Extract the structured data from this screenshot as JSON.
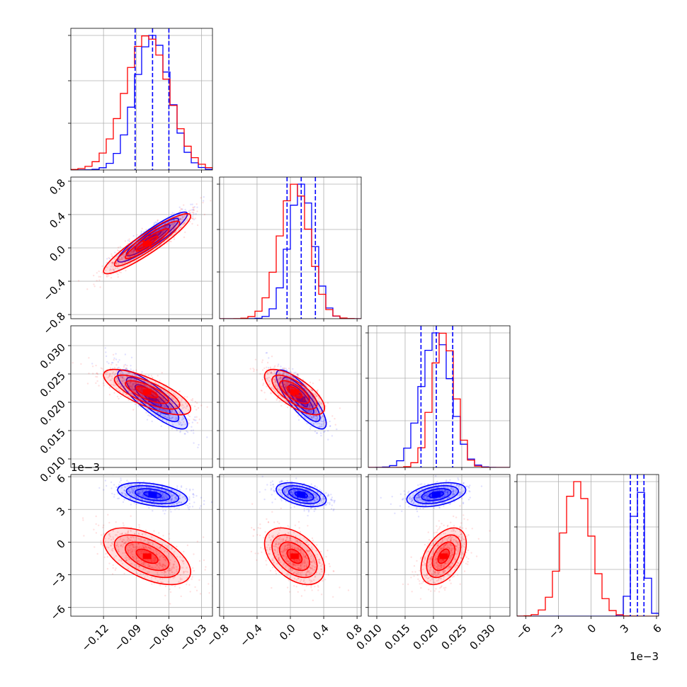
{
  "chart_data": {
    "type": "corner",
    "parameters": [
      {
        "range": [
          -0.15,
          -0.02
        ],
        "ticks": [
          -0.12,
          -0.09,
          -0.06,
          -0.03
        ],
        "tick_labels": [
          "−0.12",
          "−0.09",
          "−0.06",
          "−0.03"
        ]
      },
      {
        "range": [
          -0.85,
          0.85
        ],
        "ticks": [
          -0.8,
          -0.4,
          0.0,
          0.4,
          0.8
        ],
        "tick_labels": [
          "−0.8",
          "−0.4",
          "0.0",
          "0.4",
          "0.8"
        ]
      },
      {
        "range": [
          0.0085,
          0.0335
        ],
        "ticks": [
          0.01,
          0.015,
          0.02,
          0.025,
          0.03
        ],
        "tick_labels": [
          "0.010",
          "0.015",
          "0.020",
          "0.025",
          "0.030"
        ]
      },
      {
        "range": [
          -6.8,
          6.2
        ],
        "ticks": [
          -6,
          -3,
          0,
          3,
          6
        ],
        "tick_labels": [
          "−6",
          "−3",
          "0",
          "3",
          "6"
        ],
        "offset_label": "1e−3"
      }
    ],
    "grid": true,
    "series": [
      {
        "color": "#ff0000",
        "means": [
          -0.08,
          0.05,
          0.0218,
          -1.3
        ],
        "sds": [
          0.02,
          0.18,
          0.002,
          1.3
        ],
        "correlations": {
          "0-1": 0.92,
          "0-2": -0.75,
          "1-2": -0.7,
          "0-3": -0.55,
          "1-3": -0.45,
          "2-3": 0.45
        }
      },
      {
        "color": "#0000ff",
        "means": [
          -0.075,
          0.13,
          0.0205,
          4.35
        ],
        "sds": [
          0.016,
          0.15,
          0.0026,
          0.55
        ],
        "correlations": {
          "0-1": 0.92,
          "0-2": -0.85,
          "1-2": -0.82,
          "0-3": -0.4,
          "1-3": -0.45,
          "2-3": 0.4
        }
      }
    ],
    "quantile_lines": {
      "color": "#0000ff",
      "style": "dashed",
      "values": [
        [
          -0.091,
          -0.075,
          -0.06
        ],
        [
          -0.04,
          0.13,
          0.3
        ],
        [
          0.0178,
          0.0205,
          0.0234
        ],
        [
          3.6,
          4.25,
          4.85
        ]
      ]
    }
  }
}
